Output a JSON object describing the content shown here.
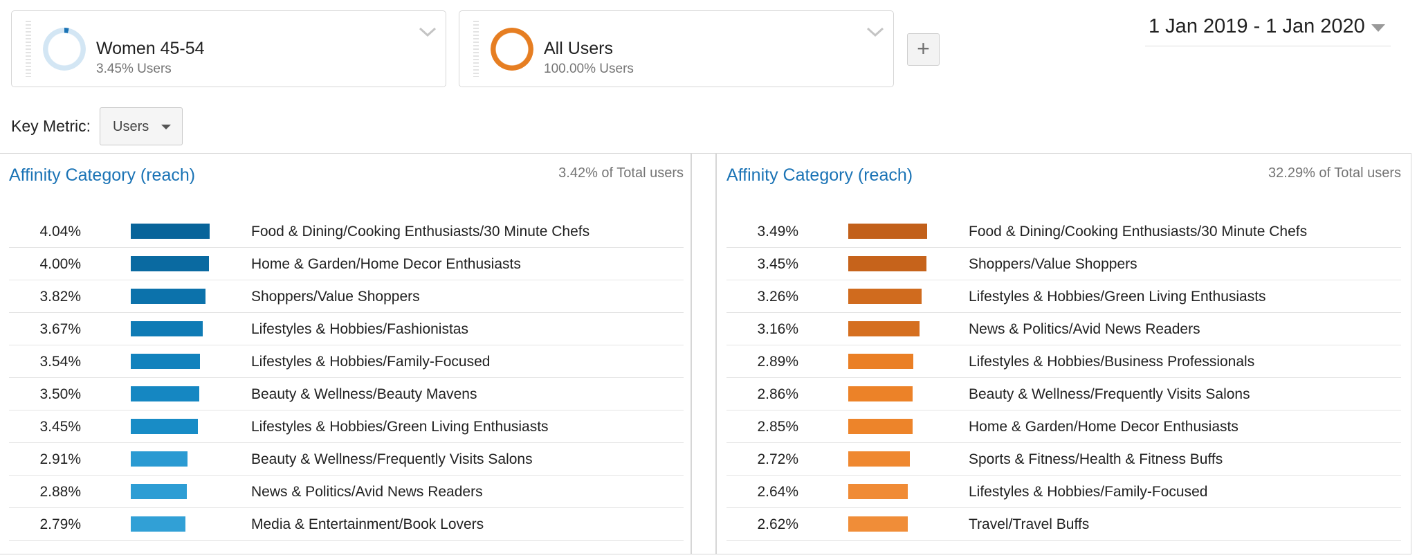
{
  "segments": [
    {
      "name": "Women 45-54",
      "share": "3.45% Users",
      "fill_fraction": 0.0345,
      "ring_color": "#d3e6f4",
      "fill_color": "#1a73b5"
    },
    {
      "name": "All Users",
      "share": "100.00% Users",
      "fill_fraction": 1.0,
      "ring_color": "#e67e22",
      "fill_color": "#e67e22"
    }
  ],
  "add_segment_label": "+",
  "date_range": "1 Jan 2019 - 1 Jan 2020",
  "key_metric": {
    "label": "Key Metric:",
    "value": "Users"
  },
  "panels": [
    {
      "title": "Affinity Category (reach)",
      "total": "3.42% of Total users",
      "bar_max_percent": 4.04,
      "rows": [
        {
          "percent": "4.04%",
          "value": 4.04,
          "category": "Food & Dining/Cooking Enthusiasts/30 Minute Chefs",
          "bar_color": "#08649a"
        },
        {
          "percent": "4.00%",
          "value": 4.0,
          "category": "Home & Garden/Home Decor Enthusiasts",
          "bar_color": "#0a6aa1"
        },
        {
          "percent": "3.82%",
          "value": 3.82,
          "category": "Shoppers/Value Shoppers",
          "bar_color": "#0c72ab"
        },
        {
          "percent": "3.67%",
          "value": 3.67,
          "category": "Lifestyles & Hobbies/Fashionistas",
          "bar_color": "#0f7bb5"
        },
        {
          "percent": "3.54%",
          "value": 3.54,
          "category": "Lifestyles & Hobbies/Family-Focused",
          "bar_color": "#1282bd"
        },
        {
          "percent": "3.50%",
          "value": 3.5,
          "category": "Beauty & Wellness/Beauty Mavens",
          "bar_color": "#1587c2"
        },
        {
          "percent": "3.45%",
          "value": 3.45,
          "category": "Lifestyles & Hobbies/Green Living Enthusiasts",
          "bar_color": "#188cc6"
        },
        {
          "percent": "2.91%",
          "value": 2.91,
          "category": "Beauty & Wellness/Frequently Visits Salons",
          "bar_color": "#2a9ad2"
        },
        {
          "percent": "2.88%",
          "value": 2.88,
          "category": "News & Politics/Avid News Readers",
          "bar_color": "#2d9dd4"
        },
        {
          "percent": "2.79%",
          "value": 2.79,
          "category": "Media & Entertainment/Book Lovers",
          "bar_color": "#31a0d6"
        }
      ]
    },
    {
      "title": "Affinity Category (reach)",
      "total": "32.29% of Total users",
      "bar_max_percent": 3.49,
      "rows": [
        {
          "percent": "3.49%",
          "value": 3.49,
          "category": "Food & Dining/Cooking Enthusiasts/30 Minute Chefs",
          "bar_color": "#c2601a"
        },
        {
          "percent": "3.45%",
          "value": 3.45,
          "category": "Shoppers/Value Shoppers",
          "bar_color": "#c6631b"
        },
        {
          "percent": "3.26%",
          "value": 3.26,
          "category": "Lifestyles & Hobbies/Green Living Enthusiasts",
          "bar_color": "#d06b1e"
        },
        {
          "percent": "3.16%",
          "value": 3.16,
          "category": "News & Politics/Avid News Readers",
          "bar_color": "#d56f20"
        },
        {
          "percent": "2.89%",
          "value": 2.89,
          "category": "Lifestyles & Hobbies/Business Professionals",
          "bar_color": "#ea7f25"
        },
        {
          "percent": "2.86%",
          "value": 2.86,
          "category": "Beauty & Wellness/Frequently Visits Salons",
          "bar_color": "#ec8228"
        },
        {
          "percent": "2.85%",
          "value": 2.85,
          "category": "Home & Garden/Home Decor Enthusiasts",
          "bar_color": "#ed842a"
        },
        {
          "percent": "2.72%",
          "value": 2.72,
          "category": "Sports & Fitness/Health & Fitness Buffs",
          "bar_color": "#ef8830"
        },
        {
          "percent": "2.64%",
          "value": 2.64,
          "category": "Lifestyles & Hobbies/Family-Focused",
          "bar_color": "#f08b35"
        },
        {
          "percent": "2.62%",
          "value": 2.62,
          "category": "Travel/Travel Buffs",
          "bar_color": "#f08d38"
        }
      ]
    }
  ]
}
